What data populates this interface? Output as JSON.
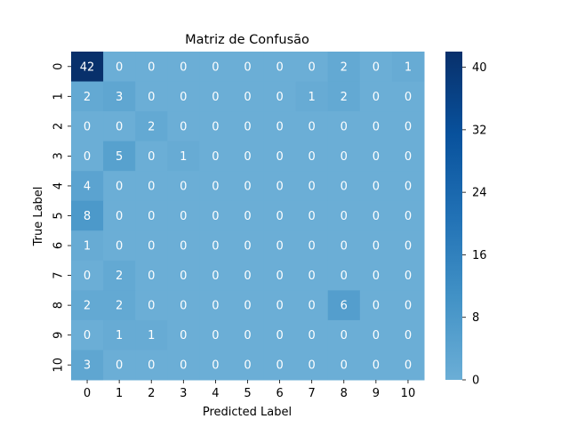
{
  "chart_data": {
    "type": "heatmap",
    "title": "Matriz de Confusão",
    "xlabel": "Predicted Label",
    "ylabel": "True Label",
    "x_categories": [
      "0",
      "1",
      "2",
      "3",
      "4",
      "5",
      "6",
      "7",
      "8",
      "9",
      "10"
    ],
    "y_categories": [
      "0",
      "1",
      "2",
      "3",
      "4",
      "5",
      "6",
      "7",
      "8",
      "9",
      "10"
    ],
    "matrix": [
      [
        42,
        0,
        0,
        0,
        0,
        0,
        0,
        0,
        2,
        0,
        1
      ],
      [
        2,
        3,
        0,
        0,
        0,
        0,
        0,
        1,
        2,
        0,
        0
      ],
      [
        0,
        0,
        2,
        0,
        0,
        0,
        0,
        0,
        0,
        0,
        0
      ],
      [
        0,
        5,
        0,
        1,
        0,
        0,
        0,
        0,
        0,
        0,
        0
      ],
      [
        4,
        0,
        0,
        0,
        0,
        0,
        0,
        0,
        0,
        0,
        0
      ],
      [
        8,
        0,
        0,
        0,
        0,
        0,
        0,
        0,
        0,
        0,
        0
      ],
      [
        1,
        0,
        0,
        0,
        0,
        0,
        0,
        0,
        0,
        0,
        0
      ],
      [
        0,
        2,
        0,
        0,
        0,
        0,
        0,
        0,
        0,
        0,
        0
      ],
      [
        2,
        2,
        0,
        0,
        0,
        0,
        0,
        0,
        6,
        0,
        0
      ],
      [
        0,
        1,
        1,
        0,
        0,
        0,
        0,
        0,
        0,
        0,
        0
      ],
      [
        3,
        0,
        0,
        0,
        0,
        0,
        0,
        0,
        0,
        0,
        0
      ]
    ],
    "colorbar": {
      "min": 0,
      "max": 42,
      "ticks": [
        0,
        8,
        16,
        24,
        32,
        40
      ],
      "colormap": "Blues",
      "color_low": "#6baed6",
      "color_high": "#08306b"
    },
    "annotation_color_dark_cells": "#ffffff"
  }
}
